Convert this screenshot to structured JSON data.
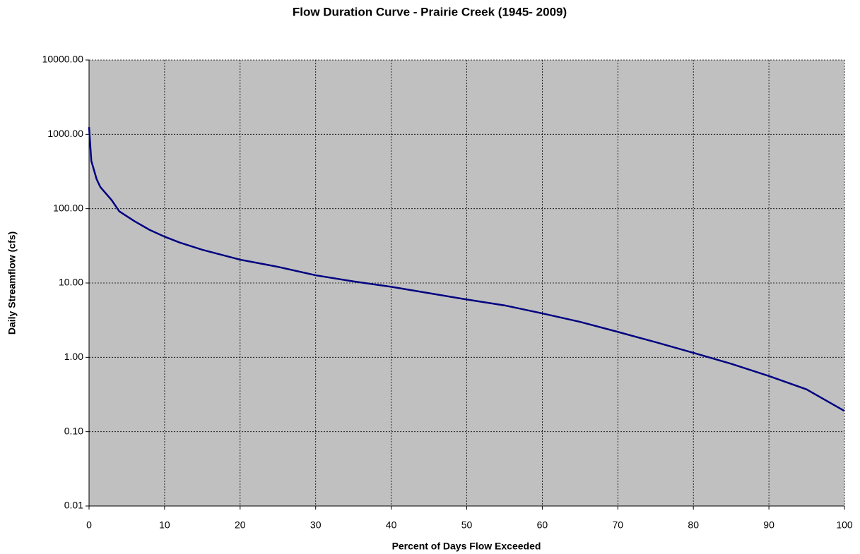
{
  "chart_data": {
    "type": "line",
    "title": "Flow Duration Curve - Prairie Creek (1945- 2009)",
    "xlabel": "Percent of Days Flow Exceeded",
    "ylabel": "Daily Streamflow (cfs)",
    "x": [
      0,
      0.3,
      1,
      1.5,
      3,
      4,
      6,
      8,
      10,
      12,
      15,
      20,
      25,
      30,
      35,
      40,
      45,
      50,
      55,
      60,
      65,
      70,
      75,
      80,
      85,
      90,
      95,
      100
    ],
    "series": [
      {
        "name": "Daily Streamflow",
        "color": "#000080",
        "values": [
          1250,
          440,
          250,
          195,
          130,
          92,
          68,
          52,
          42,
          35,
          28,
          20.6,
          16.5,
          12.7,
          10.5,
          8.9,
          7.3,
          6.0,
          5.0,
          3.9,
          3.0,
          2.2,
          1.6,
          1.15,
          0.82,
          0.56,
          0.37,
          0.19
        ]
      }
    ],
    "xlim": [
      0,
      100
    ],
    "xticks": [
      0,
      10,
      20,
      30,
      40,
      50,
      60,
      70,
      80,
      90,
      100
    ],
    "ylim": [
      0.01,
      10000
    ],
    "yticks": [
      {
        "value": 0.01,
        "label": "0.01"
      },
      {
        "value": 0.1,
        "label": "0.10"
      },
      {
        "value": 1,
        "label": "1.00"
      },
      {
        "value": 10,
        "label": "10.00"
      },
      {
        "value": 100,
        "label": "100.00"
      },
      {
        "value": 1000,
        "label": "1000.00"
      },
      {
        "value": 10000,
        "label": "10000.00"
      }
    ],
    "ylog": true,
    "grid": true,
    "plot_background": "#c0c0c0"
  }
}
